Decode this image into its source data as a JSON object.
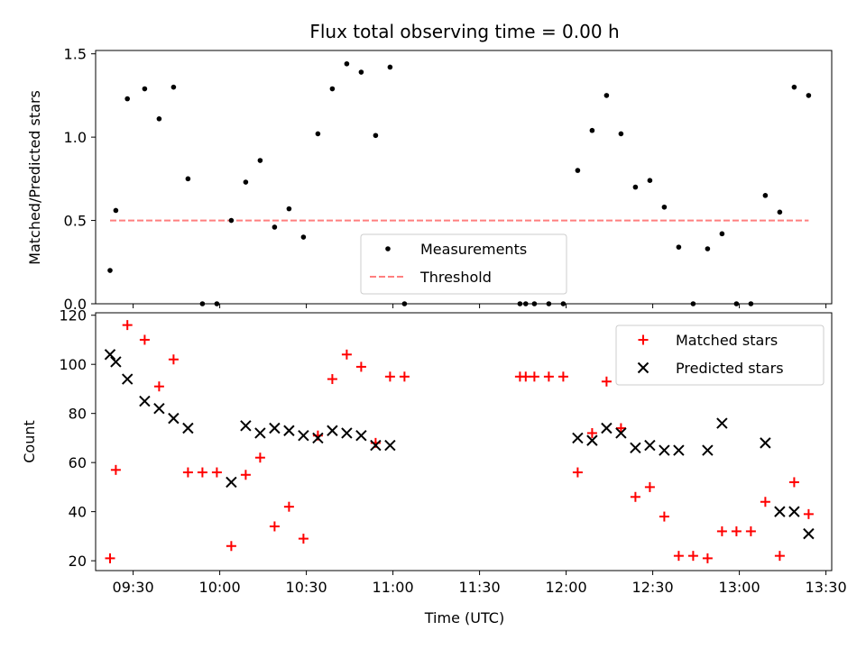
{
  "figure": {
    "title": "Flux total observing time = 0.00 h",
    "xlabel": "Time (UTC)"
  },
  "chart_data": [
    {
      "type": "scatter",
      "title": "Flux total observing time = 0.00 h",
      "xlabel": "",
      "ylabel": "Matched/Predicted stars",
      "x_tick_labels": [],
      "xlim": [
        "09:17",
        "13:32"
      ],
      "ylim": [
        0,
        1.52
      ],
      "y_ticks": [
        0.0,
        0.5,
        1.0,
        1.5
      ],
      "y_tick_labels": [
        "0.0",
        "0.5",
        "1.0",
        "1.5"
      ],
      "legend_position": "lower-center",
      "series": [
        {
          "name": "Measurements",
          "marker": "dot",
          "color": "#000000",
          "points": [
            {
              "x": "09:22",
              "y": 0.2
            },
            {
              "x": "09:24",
              "y": 0.56
            },
            {
              "x": "09:28",
              "y": 1.23
            },
            {
              "x": "09:34",
              "y": 1.29
            },
            {
              "x": "09:39",
              "y": 1.11
            },
            {
              "x": "09:44",
              "y": 1.3
            },
            {
              "x": "09:49",
              "y": 0.75
            },
            {
              "x": "09:54",
              "y": 0.0
            },
            {
              "x": "09:59",
              "y": 0.0
            },
            {
              "x": "10:04",
              "y": 0.5
            },
            {
              "x": "10:09",
              "y": 0.73
            },
            {
              "x": "10:14",
              "y": 0.86
            },
            {
              "x": "10:19",
              "y": 0.46
            },
            {
              "x": "10:24",
              "y": 0.57
            },
            {
              "x": "10:29",
              "y": 0.4
            },
            {
              "x": "10:34",
              "y": 1.02
            },
            {
              "x": "10:39",
              "y": 1.29
            },
            {
              "x": "10:44",
              "y": 1.44
            },
            {
              "x": "10:49",
              "y": 1.39
            },
            {
              "x": "10:54",
              "y": 1.01
            },
            {
              "x": "10:59",
              "y": 1.42
            },
            {
              "x": "11:04",
              "y": 0.0
            },
            {
              "x": "11:44",
              "y": 0.0
            },
            {
              "x": "11:46",
              "y": 0.0
            },
            {
              "x": "11:49",
              "y": 0.0
            },
            {
              "x": "11:54",
              "y": 0.0
            },
            {
              "x": "11:59",
              "y": 0.0
            },
            {
              "x": "12:04",
              "y": 0.8
            },
            {
              "x": "12:09",
              "y": 1.04
            },
            {
              "x": "12:14",
              "y": 1.25
            },
            {
              "x": "12:19",
              "y": 1.02
            },
            {
              "x": "12:24",
              "y": 0.7
            },
            {
              "x": "12:29",
              "y": 0.74
            },
            {
              "x": "12:34",
              "y": 0.58
            },
            {
              "x": "12:39",
              "y": 0.34
            },
            {
              "x": "12:44",
              "y": 0.0
            },
            {
              "x": "12:49",
              "y": 0.33
            },
            {
              "x": "12:54",
              "y": 0.42
            },
            {
              "x": "12:59",
              "y": 0.0
            },
            {
              "x": "13:04",
              "y": 0.0
            },
            {
              "x": "13:09",
              "y": 0.65
            },
            {
              "x": "13:14",
              "y": 0.55
            },
            {
              "x": "13:19",
              "y": 1.3
            },
            {
              "x": "13:24",
              "y": 1.25
            }
          ]
        },
        {
          "name": "Threshold",
          "marker": "dashed-line",
          "color": "#ff7f7f",
          "points": [
            {
              "x": "09:22",
              "y": 0.5
            },
            {
              "x": "13:24",
              "y": 0.5
            }
          ]
        }
      ]
    },
    {
      "type": "scatter",
      "title": "",
      "xlabel": "Time (UTC)",
      "ylabel": "Count",
      "xlim": [
        "09:17",
        "13:32"
      ],
      "x_ticks": [
        "09:30",
        "10:00",
        "10:30",
        "11:00",
        "11:30",
        "12:00",
        "12:30",
        "13:00",
        "13:30"
      ],
      "ylim": [
        16,
        121
      ],
      "y_ticks": [
        20,
        40,
        60,
        80,
        100,
        120
      ],
      "legend_position": "top-right",
      "series": [
        {
          "name": "Matched stars",
          "marker": "plus",
          "color": "#ff0000",
          "points": [
            {
              "x": "09:22",
              "y": 21
            },
            {
              "x": "09:24",
              "y": 57
            },
            {
              "x": "09:28",
              "y": 116
            },
            {
              "x": "09:34",
              "y": 110
            },
            {
              "x": "09:39",
              "y": 91
            },
            {
              "x": "09:44",
              "y": 102
            },
            {
              "x": "09:49",
              "y": 56
            },
            {
              "x": "09:54",
              "y": 56
            },
            {
              "x": "09:59",
              "y": 56
            },
            {
              "x": "10:04",
              "y": 26
            },
            {
              "x": "10:09",
              "y": 55
            },
            {
              "x": "10:14",
              "y": 62
            },
            {
              "x": "10:19",
              "y": 34
            },
            {
              "x": "10:24",
              "y": 42
            },
            {
              "x": "10:29",
              "y": 29
            },
            {
              "x": "10:34",
              "y": 71
            },
            {
              "x": "10:39",
              "y": 94
            },
            {
              "x": "10:44",
              "y": 104
            },
            {
              "x": "10:49",
              "y": 99
            },
            {
              "x": "10:54",
              "y": 68
            },
            {
              "x": "10:59",
              "y": 95
            },
            {
              "x": "11:04",
              "y": 95
            },
            {
              "x": "11:44",
              "y": 95
            },
            {
              "x": "11:46",
              "y": 95
            },
            {
              "x": "11:49",
              "y": 95
            },
            {
              "x": "11:54",
              "y": 95
            },
            {
              "x": "11:59",
              "y": 95
            },
            {
              "x": "12:04",
              "y": 56
            },
            {
              "x": "12:09",
              "y": 72
            },
            {
              "x": "12:14",
              "y": 93
            },
            {
              "x": "12:19",
              "y": 74
            },
            {
              "x": "12:24",
              "y": 46
            },
            {
              "x": "12:29",
              "y": 50
            },
            {
              "x": "12:34",
              "y": 38
            },
            {
              "x": "12:39",
              "y": 22
            },
            {
              "x": "12:44",
              "y": 22
            },
            {
              "x": "12:49",
              "y": 21
            },
            {
              "x": "12:54",
              "y": 32
            },
            {
              "x": "12:59",
              "y": 32
            },
            {
              "x": "13:04",
              "y": 32
            },
            {
              "x": "13:09",
              "y": 44
            },
            {
              "x": "13:14",
              "y": 22
            },
            {
              "x": "13:19",
              "y": 52
            },
            {
              "x": "13:24",
              "y": 39
            }
          ]
        },
        {
          "name": "Predicted stars",
          "marker": "x",
          "color": "#000000",
          "points": [
            {
              "x": "09:22",
              "y": 104
            },
            {
              "x": "09:24",
              "y": 101
            },
            {
              "x": "09:28",
              "y": 94
            },
            {
              "x": "09:34",
              "y": 85
            },
            {
              "x": "09:39",
              "y": 82
            },
            {
              "x": "09:44",
              "y": 78
            },
            {
              "x": "09:49",
              "y": 74
            },
            {
              "x": "10:04",
              "y": 52
            },
            {
              "x": "10:09",
              "y": 75
            },
            {
              "x": "10:14",
              "y": 72
            },
            {
              "x": "10:19",
              "y": 74
            },
            {
              "x": "10:24",
              "y": 73
            },
            {
              "x": "10:29",
              "y": 71
            },
            {
              "x": "10:34",
              "y": 70
            },
            {
              "x": "10:39",
              "y": 73
            },
            {
              "x": "10:44",
              "y": 72
            },
            {
              "x": "10:49",
              "y": 71
            },
            {
              "x": "10:54",
              "y": 67
            },
            {
              "x": "10:59",
              "y": 67
            },
            {
              "x": "12:04",
              "y": 70
            },
            {
              "x": "12:09",
              "y": 69
            },
            {
              "x": "12:14",
              "y": 74
            },
            {
              "x": "12:19",
              "y": 72
            },
            {
              "x": "12:24",
              "y": 66
            },
            {
              "x": "12:29",
              "y": 67
            },
            {
              "x": "12:34",
              "y": 65
            },
            {
              "x": "12:39",
              "y": 65
            },
            {
              "x": "12:49",
              "y": 65
            },
            {
              "x": "12:54",
              "y": 76
            },
            {
              "x": "13:09",
              "y": 68
            },
            {
              "x": "13:14",
              "y": 40
            },
            {
              "x": "13:19",
              "y": 40
            },
            {
              "x": "13:24",
              "y": 31
            }
          ]
        }
      ]
    }
  ]
}
